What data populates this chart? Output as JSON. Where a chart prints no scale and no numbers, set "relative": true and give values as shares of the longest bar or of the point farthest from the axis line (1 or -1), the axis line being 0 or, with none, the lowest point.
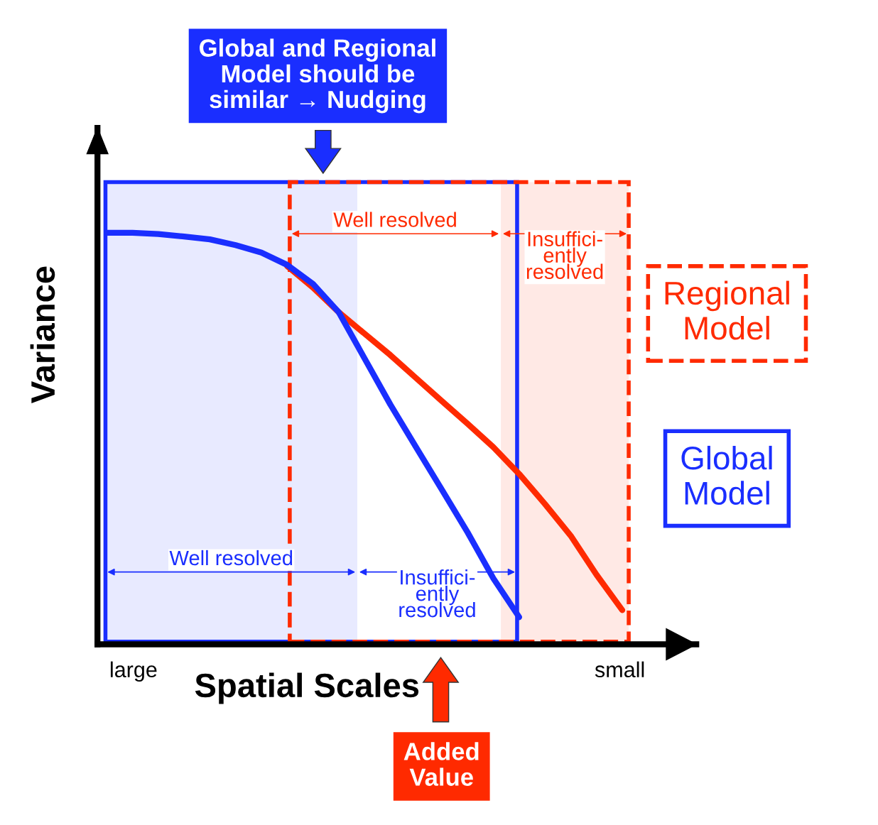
{
  "chart_data": {
    "type": "line",
    "relative": true,
    "xlabel": "Spatial Scales",
    "ylabel": "Variance",
    "categories": [
      null,
      null,
      null,
      null,
      null,
      null,
      null,
      null,
      null,
      null,
      null,
      null,
      null,
      null,
      null,
      null,
      null,
      null,
      null,
      null,
      null
    ],
    "series": [
      {
        "name": "Regional Model",
        "color": "#ff2a00",
        "values": [
          null,
          null,
          null,
          null,
          null,
          null,
          null,
          0.919,
          0.867,
          0.807,
          0.755,
          0.703,
          0.647,
          0.591,
          0.536,
          0.479,
          0.414,
          0.341,
          0.264,
          0.169,
          0.083
        ]
      },
      {
        "name": "Global Model",
        "color": "#1a2eff",
        "values": [
          1.0,
          1.0,
          0.997,
          0.991,
          0.984,
          0.97,
          0.952,
          0.922,
          0.876,
          0.807,
          0.695,
          0.583,
          0.479,
          0.376,
          0.272,
          0.16,
          0.066,
          null,
          null,
          null,
          null
        ]
      }
    ],
    "annotations": [
      "Global and Regional\nModel should be\nsimilar → Nudging",
      "Well resolved",
      "Insuffici-\nently\nresolved",
      "Well resolved",
      "Insuffici-\nently\nresolved",
      "large",
      "small",
      "Added\nValue"
    ],
    "legend": "right",
    "marker": "none",
    "line_style": "solid"
  }
}
